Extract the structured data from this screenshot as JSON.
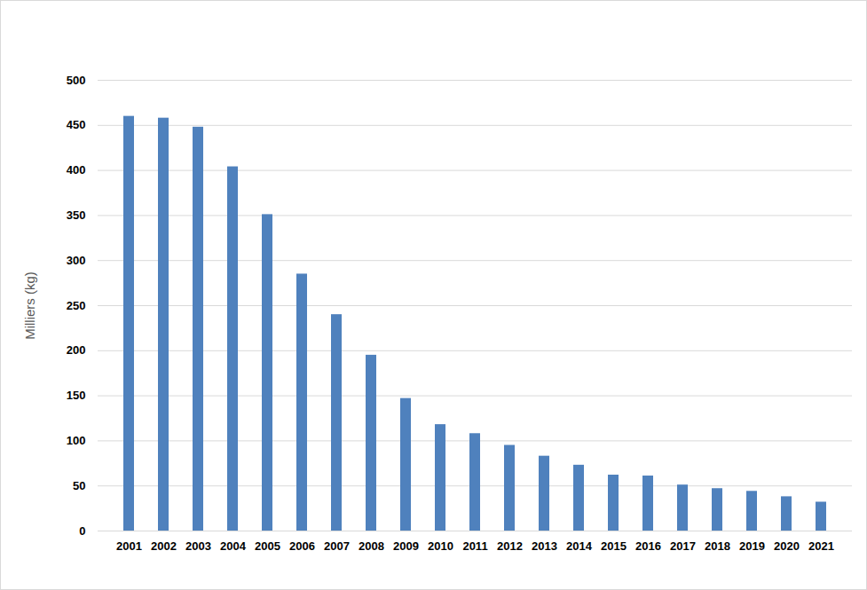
{
  "chart_data": {
    "type": "bar",
    "y_label": "Milliers (kg)",
    "categories": [
      "2001",
      "2002",
      "2003",
      "2004",
      "2005",
      "2006",
      "2007",
      "2008",
      "2009",
      "2010",
      "2011",
      "2012",
      "2013",
      "2014",
      "2015",
      "2016",
      "2017",
      "2018",
      "2019",
      "2020",
      "2021"
    ],
    "values": [
      460,
      458,
      448,
      404,
      351,
      285,
      240,
      195,
      147,
      118,
      108,
      95,
      83,
      73,
      62,
      61,
      51,
      47,
      44,
      38,
      32
    ],
    "color": "#4f81bd",
    "ylim": [
      0,
      500
    ],
    "yticks": [
      0,
      50,
      100,
      150,
      200,
      250,
      300,
      350,
      400,
      450,
      500
    ],
    "grid": true
  }
}
